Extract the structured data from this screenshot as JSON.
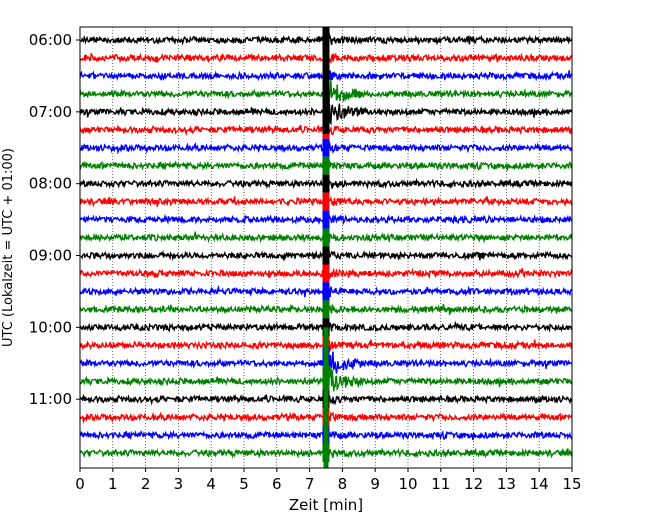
{
  "chart_data": {
    "type": "line",
    "title": "",
    "xlabel": "Zeit  [min]",
    "ylabel": "UTC (Lokalzeit = UTC + 01:00)",
    "xlim": [
      0,
      15
    ],
    "x_ticks": [
      0,
      1,
      2,
      3,
      4,
      5,
      6,
      7,
      8,
      9,
      10,
      11,
      12,
      13,
      14,
      15
    ],
    "x_tick_labels": [
      "0",
      "1",
      "2",
      "3",
      "4",
      "5",
      "6",
      "7",
      "8",
      "9",
      "10",
      "11",
      "12",
      "13",
      "14",
      "15"
    ],
    "y_tick_labels": [
      "06:00",
      "07:00",
      "08:00",
      "09:00",
      "10:00",
      "11:00"
    ],
    "y_tick_rows": [
      0,
      4,
      8,
      12,
      16,
      20
    ],
    "grid": "vertical dotted at each minute",
    "trace_colors": [
      "#000000",
      "#ff0000",
      "#0000ff",
      "#008000"
    ],
    "traces": [
      {
        "row": 0,
        "start": "06:00",
        "color": "#000000"
      },
      {
        "row": 1,
        "start": "06:15",
        "color": "#ff0000"
      },
      {
        "row": 2,
        "start": "06:30",
        "color": "#0000ff"
      },
      {
        "row": 3,
        "start": "06:45",
        "color": "#008000"
      },
      {
        "row": 4,
        "start": "07:00",
        "color": "#000000"
      },
      {
        "row": 5,
        "start": "07:15",
        "color": "#ff0000"
      },
      {
        "row": 6,
        "start": "07:30",
        "color": "#0000ff"
      },
      {
        "row": 7,
        "start": "07:45",
        "color": "#008000"
      },
      {
        "row": 8,
        "start": "08:00",
        "color": "#000000"
      },
      {
        "row": 9,
        "start": "08:15",
        "color": "#ff0000"
      },
      {
        "row": 10,
        "start": "08:30",
        "color": "#0000ff"
      },
      {
        "row": 11,
        "start": "08:45",
        "color": "#008000"
      },
      {
        "row": 12,
        "start": "09:00",
        "color": "#000000"
      },
      {
        "row": 13,
        "start": "09:15",
        "color": "#ff0000"
      },
      {
        "row": 14,
        "start": "09:30",
        "color": "#0000ff"
      },
      {
        "row": 15,
        "start": "09:45",
        "color": "#008000"
      },
      {
        "row": 16,
        "start": "10:00",
        "color": "#000000"
      },
      {
        "row": 17,
        "start": "10:15",
        "color": "#ff0000"
      },
      {
        "row": 18,
        "start": "10:30",
        "color": "#0000ff"
      },
      {
        "row": 19,
        "start": "10:45",
        "color": "#008000"
      },
      {
        "row": 20,
        "start": "11:00",
        "color": "#000000"
      },
      {
        "row": 21,
        "start": "11:15",
        "color": "#ff0000"
      },
      {
        "row": 22,
        "start": "11:30",
        "color": "#0000ff"
      },
      {
        "row": 23,
        "start": "11:45",
        "color": "#008000"
      }
    ],
    "events": [
      {
        "minute": 7.5,
        "description": "strong saturated signal crossing all traces",
        "strongest_traces": [
          "06:45",
          "07:00",
          "10:30",
          "10:45"
        ]
      }
    ]
  }
}
